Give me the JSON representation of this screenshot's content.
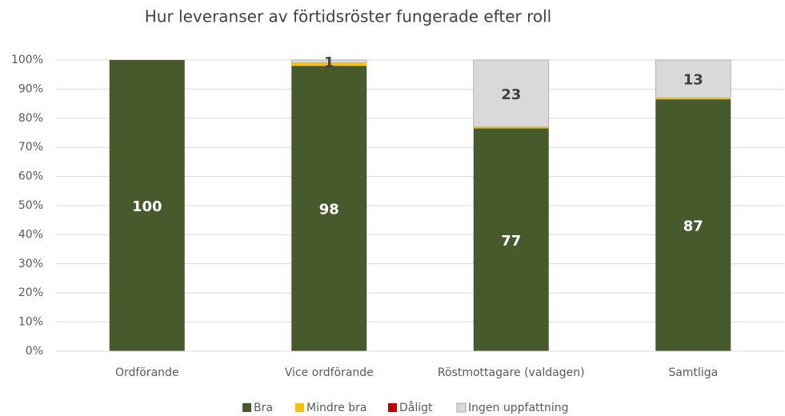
{
  "chart_data": {
    "type": "stacked_bar",
    "title": "Hur leveranser av förtidsröster fungerade efter roll",
    "categories": [
      "Ordförande",
      "Vice ordförande",
      "Röstmottagare (valdagen)",
      "Samtliga"
    ],
    "series": [
      {
        "name": "Bra",
        "color": "#475a2c",
        "values": [
          100,
          98,
          76.5,
          86.5
        ],
        "value_labels": [
          "100",
          "98",
          "77",
          "87"
        ]
      },
      {
        "name": "Mindre bra",
        "color": "#ffc000",
        "values": [
          0,
          1,
          0.5,
          0.5
        ]
      },
      {
        "name": "Dåligt",
        "color": "#c00000",
        "values": [
          0,
          0,
          0,
          0
        ]
      },
      {
        "name": "Ingen uppfattning",
        "color": "#d9d9d9",
        "values": [
          0,
          1,
          23,
          13
        ],
        "value_labels": [
          null,
          "1",
          "23",
          "13"
        ]
      }
    ],
    "ylim": [
      0,
      100
    ],
    "yticks": [
      {
        "value": 0,
        "label": "0%"
      },
      {
        "value": 10,
        "label": "10%"
      },
      {
        "value": 20,
        "label": "20%"
      },
      {
        "value": 30,
        "label": "30%"
      },
      {
        "value": 40,
        "label": "40%"
      },
      {
        "value": 50,
        "label": "50%"
      },
      {
        "value": 60,
        "label": "60%"
      },
      {
        "value": 70,
        "label": "70%"
      },
      {
        "value": 80,
        "label": "80%"
      },
      {
        "value": 90,
        "label": "90%"
      },
      {
        "value": 100,
        "label": "100%"
      }
    ],
    "grid": true,
    "legend": "bottom"
  }
}
